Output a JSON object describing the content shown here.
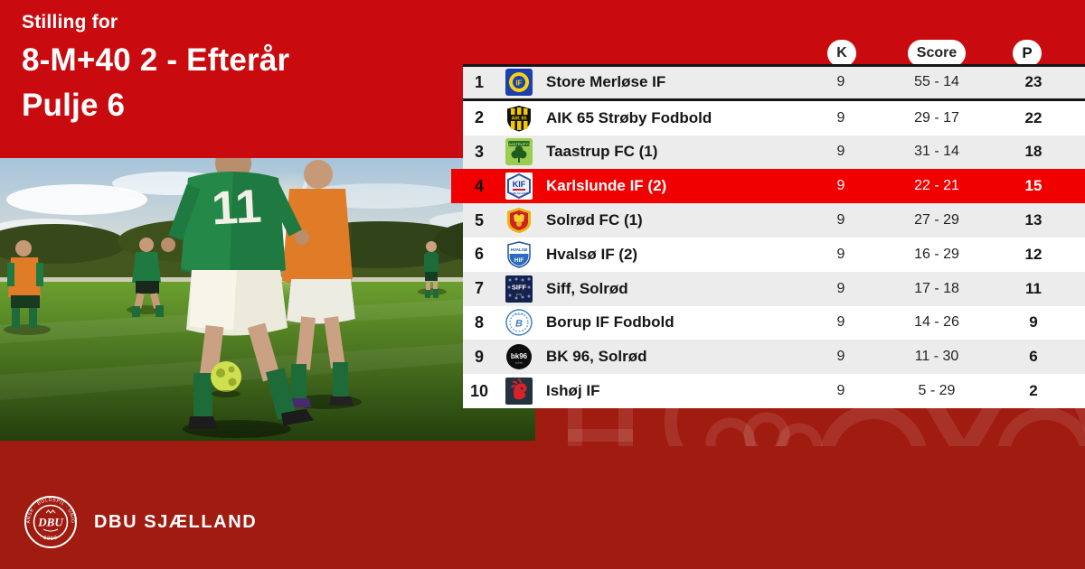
{
  "header": {
    "eyebrow": "Stilling for",
    "title": "8-M+40 2 - Efterår",
    "subtitle": "Pulje 6"
  },
  "table": {
    "columns": {
      "matches": "K",
      "score": "Score",
      "points": "P"
    },
    "rows": [
      {
        "pos": "1",
        "team": "Store Merløse IF",
        "logo": "merlose",
        "k": "9",
        "score": "55 - 14",
        "p": "23",
        "highlight": false
      },
      {
        "pos": "2",
        "team": "AIK 65 Strøby Fodbold",
        "logo": "aik65",
        "k": "9",
        "score": "29 - 17",
        "p": "22",
        "highlight": false
      },
      {
        "pos": "3",
        "team": "Taastrup FC (1)",
        "logo": "taastrup",
        "k": "9",
        "score": "31 - 14",
        "p": "18",
        "highlight": false
      },
      {
        "pos": "4",
        "team": "Karlslunde IF (2)",
        "logo": "karlslunde",
        "k": "9",
        "score": "22 - 21",
        "p": "15",
        "highlight": true
      },
      {
        "pos": "5",
        "team": "Solrød FC (1)",
        "logo": "solrod",
        "k": "9",
        "score": "27 - 29",
        "p": "13",
        "highlight": false
      },
      {
        "pos": "6",
        "team": "Hvalsø IF (2)",
        "logo": "hvalso",
        "k": "9",
        "score": "16 - 29",
        "p": "12",
        "highlight": false
      },
      {
        "pos": "7",
        "team": "Siff, Solrød",
        "logo": "siff",
        "k": "9",
        "score": "17 - 18",
        "p": "11",
        "highlight": false
      },
      {
        "pos": "8",
        "team": "Borup IF Fodbold",
        "logo": "borup",
        "k": "9",
        "score": "14 - 26",
        "p": "9",
        "highlight": false
      },
      {
        "pos": "9",
        "team": "BK 96, Solrød",
        "logo": "bk96",
        "k": "9",
        "score": "11 - 30",
        "p": "6",
        "highlight": false
      },
      {
        "pos": "10",
        "team": "Ishøj IF",
        "logo": "ishoj",
        "k": "9",
        "score": "5 - 29",
        "p": "2",
        "highlight": false
      }
    ]
  },
  "footer": {
    "org": "DBU SJÆLLAND",
    "emblem_center": "DBU",
    "emblem_top": "DANSK · BOLDSPIL · UNION",
    "emblem_year": "· 1889 ·"
  },
  "colors": {
    "brand_red": "#c90b0f",
    "dark_red": "#a01b10",
    "highlight_red": "#f10000",
    "row_alt": "#ececec",
    "text_dark": "#161616"
  }
}
